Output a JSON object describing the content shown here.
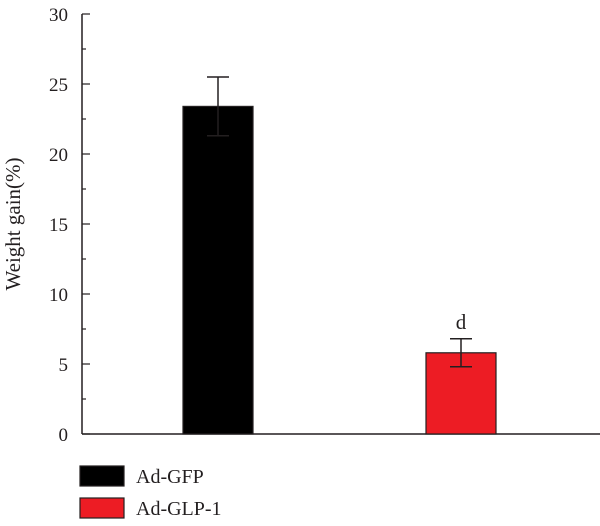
{
  "chart_data": {
    "type": "bar",
    "categories": [
      "Ad-GFP",
      "Ad-GLP-1"
    ],
    "values": [
      23.4,
      5.8
    ],
    "errors": [
      2.1,
      1.0
    ],
    "colors": [
      "#000000",
      "#ed1c24"
    ],
    "annotations": [
      "",
      "d"
    ],
    "ylabel": "Weight gain(%)",
    "xlabel": "",
    "ylim": [
      0,
      30
    ],
    "yticks": [
      0,
      5,
      10,
      15,
      20,
      25,
      30
    ],
    "grid": false,
    "legend": {
      "position": "bottom-left",
      "entries": [
        "Ad-GFP",
        "Ad-GLP-1"
      ]
    }
  }
}
